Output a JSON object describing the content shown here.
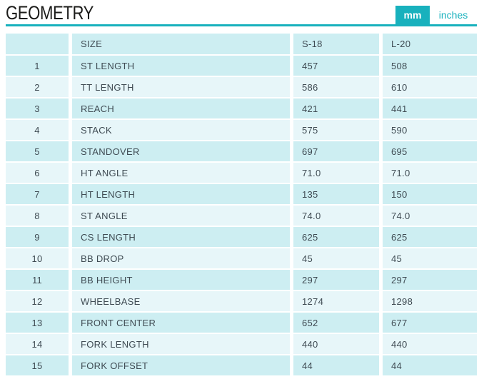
{
  "page": {
    "title": "GEOMETRY"
  },
  "unit_toggle": {
    "mm_label": "mm",
    "inches_label": "inches",
    "active": "mm"
  },
  "table": {
    "columns": {
      "num": "",
      "size": "SIZE",
      "s18": "S-18",
      "l20": "L-20"
    },
    "rows": [
      {
        "num": "1",
        "label": "ST LENGTH",
        "s18": "457",
        "l20": "508"
      },
      {
        "num": "2",
        "label": "TT LENGTH",
        "s18": "586",
        "l20": "610"
      },
      {
        "num": "3",
        "label": "REACH",
        "s18": "421",
        "l20": "441"
      },
      {
        "num": "4",
        "label": "STACK",
        "s18": "575",
        "l20": "590"
      },
      {
        "num": "5",
        "label": "STANDOVER",
        "s18": "697",
        "l20": "695"
      },
      {
        "num": "6",
        "label": "HT ANGLE",
        "s18": "71.0",
        "l20": "71.0"
      },
      {
        "num": "7",
        "label": "HT LENGTH",
        "s18": "135",
        "l20": "150"
      },
      {
        "num": "8",
        "label": "ST ANGLE",
        "s18": "74.0",
        "l20": "74.0"
      },
      {
        "num": "9",
        "label": "CS LENGTH",
        "s18": "625",
        "l20": "625"
      },
      {
        "num": "10",
        "label": "BB DROP",
        "s18": "45",
        "l20": "45"
      },
      {
        "num": "11",
        "label": "BB HEIGHT",
        "s18": "297",
        "l20": "297"
      },
      {
        "num": "12",
        "label": "WHEELBASE",
        "s18": "1274",
        "l20": "1298"
      },
      {
        "num": "13",
        "label": "FRONT CENTER",
        "s18": "652",
        "l20": "677"
      },
      {
        "num": "14",
        "label": "FORK LENGTH",
        "s18": "440",
        "l20": "440"
      },
      {
        "num": "15",
        "label": "FORK OFFSET",
        "s18": "44",
        "l20": "44"
      }
    ]
  },
  "colors": {
    "accent": "#18b1bd",
    "row_light": "#e7f6f9",
    "row_dark": "#cdeef2",
    "text": "#3f4b53",
    "title": "#1c1c1a"
  }
}
